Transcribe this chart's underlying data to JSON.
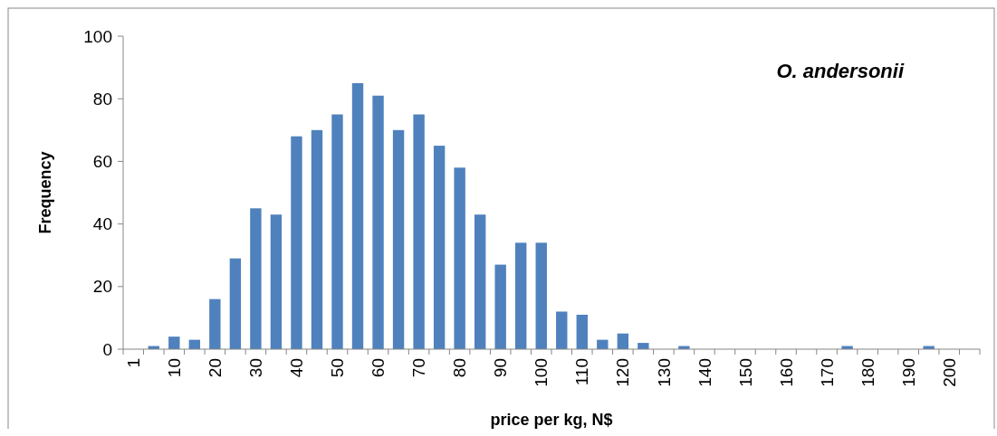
{
  "chart_data": {
    "type": "bar",
    "xlabel": "price per kg, N$",
    "ylabel": "Frequency",
    "annotations": [
      "O. andersonii"
    ],
    "categories": [
      "1",
      null,
      "10",
      null,
      "20",
      null,
      "30",
      null,
      "40",
      null,
      "50",
      null,
      "60",
      null,
      "70",
      null,
      "80",
      null,
      "90",
      null,
      "100",
      null,
      "110",
      null,
      "120",
      null,
      "130",
      null,
      "140",
      null,
      "150",
      null,
      "160",
      null,
      "170",
      null,
      "180",
      null,
      "190",
      null,
      "200",
      null
    ],
    "values": [
      0,
      1,
      4,
      3,
      16,
      29,
      45,
      43,
      68,
      70,
      75,
      85,
      81,
      70,
      75,
      65,
      58,
      43,
      27,
      34,
      34,
      12,
      11,
      3,
      5,
      2,
      0,
      1,
      0,
      0,
      0,
      0,
      0,
      0,
      0,
      1,
      0,
      0,
      0,
      1,
      0,
      0
    ],
    "color": "#4f81bd",
    "ylim": [
      0,
      100
    ],
    "yticks": [
      0,
      20,
      40,
      60,
      80,
      100
    ],
    "grid": false
  }
}
